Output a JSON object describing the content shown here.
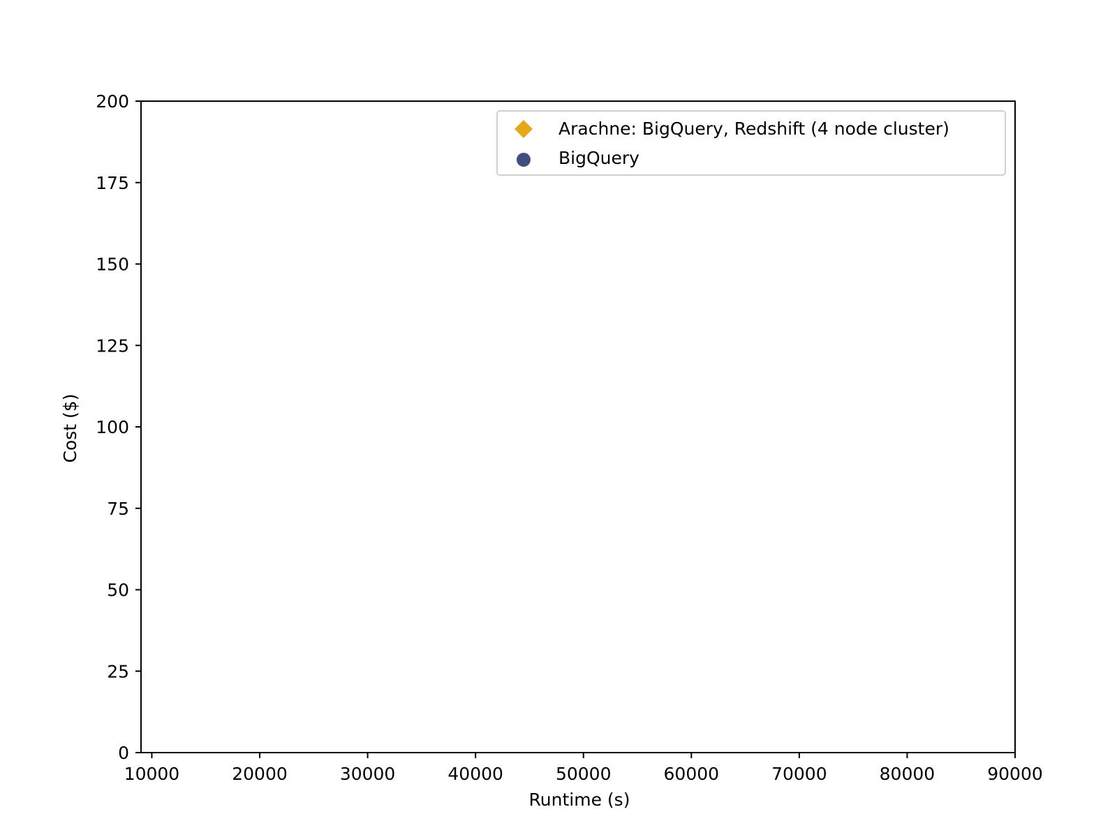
{
  "chart_data": {
    "type": "scatter",
    "title": "",
    "xlabel": "Runtime (s)",
    "ylabel": "Cost ($)",
    "xlim": [
      9000,
      90000
    ],
    "ylim": [
      0,
      200
    ],
    "x_ticks": [
      10000,
      20000,
      30000,
      40000,
      50000,
      60000,
      70000,
      80000,
      90000
    ],
    "x_tick_labels": [
      "10000",
      "20000",
      "30000",
      "40000",
      "50000",
      "60000",
      "70000",
      "80000",
      "90000"
    ],
    "y_ticks": [
      0,
      25,
      50,
      75,
      100,
      125,
      150,
      175,
      200
    ],
    "y_tick_labels": [
      "0",
      "25",
      "50",
      "75",
      "100",
      "125",
      "150",
      "175",
      "200"
    ],
    "grid": false,
    "legend_position": "top-right",
    "series": [
      {
        "name": "Arachne: BigQuery, Redshift (4 node cluster)",
        "marker": "diamond",
        "color": "#E6A817",
        "points": []
      },
      {
        "name": "BigQuery",
        "marker": "circle",
        "color": "#3F4F7E",
        "points": []
      }
    ]
  }
}
